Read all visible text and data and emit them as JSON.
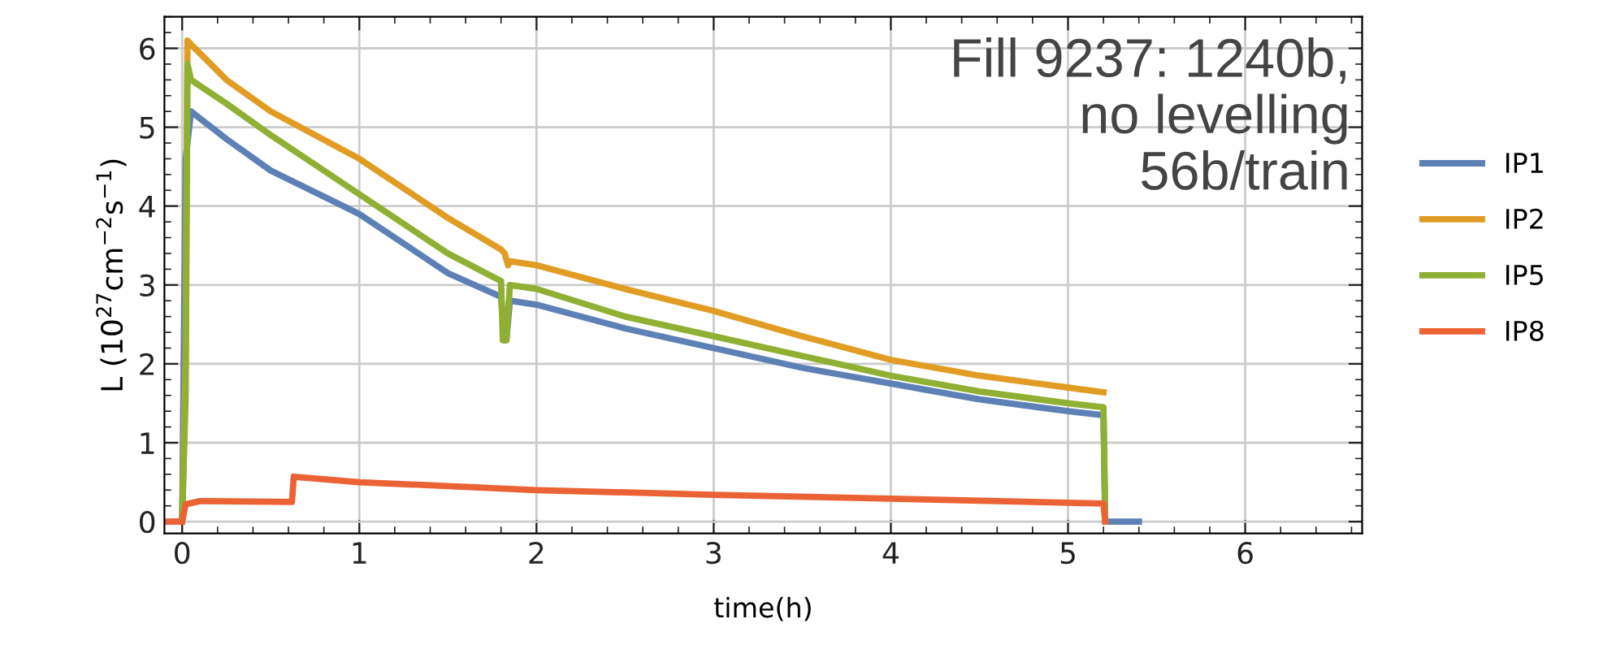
{
  "chart_data": {
    "type": "line",
    "xlabel": "time(h)",
    "ylabel": "L (10$^{27}$cm$^{−2}$s$^{−1}$)",
    "xlim": [
      -0.1,
      6.66
    ],
    "ylim": [
      -0.15,
      6.4
    ],
    "xticks": [
      0,
      1,
      2,
      3,
      4,
      5,
      6
    ],
    "yticks": [
      0,
      1,
      2,
      3,
      4,
      5,
      6
    ],
    "grid": true,
    "legend": "right",
    "marker": "none",
    "line_style": "solid",
    "annotations": [
      "Fill 9237: 1240b,\nno levelling\n56b/train"
    ],
    "series": [
      {
        "name": "IP1",
        "color": "#5e81b5",
        "x": [
          -0.05,
          0.0,
          0.02,
          0.05,
          0.25,
          0.5,
          1.0,
          1.5,
          1.8,
          1.82,
          1.83,
          1.85,
          2.0,
          2.5,
          3.0,
          3.5,
          4.0,
          4.5,
          5.0,
          5.2,
          5.21,
          5.4
        ],
        "values": [
          0.0,
          0.0,
          4.6,
          5.2,
          4.85,
          4.45,
          3.9,
          3.15,
          2.85,
          2.3,
          2.3,
          2.8,
          2.75,
          2.45,
          2.2,
          1.95,
          1.75,
          1.55,
          1.4,
          1.35,
          0.0,
          0.0
        ]
      },
      {
        "name": "IP2",
        "color": "#e19c24",
        "x": [
          0.0,
          0.02,
          0.03,
          0.05,
          0.25,
          0.5,
          1.0,
          1.5,
          1.8,
          1.82,
          1.84,
          1.85,
          2.0,
          2.5,
          3.0,
          3.5,
          4.0,
          4.5,
          5.0,
          5.2
        ],
        "values": [
          0.0,
          2.1,
          6.1,
          6.05,
          5.6,
          5.2,
          4.6,
          3.85,
          3.45,
          3.4,
          3.25,
          3.3,
          3.25,
          2.95,
          2.67,
          2.35,
          2.05,
          1.85,
          1.7,
          1.64
        ]
      },
      {
        "name": "IP5",
        "color": "#8fb032",
        "x": [
          0.0,
          0.02,
          0.03,
          0.05,
          0.25,
          0.5,
          1.0,
          1.5,
          1.8,
          1.81,
          1.83,
          1.85,
          2.0,
          2.5,
          3.0,
          3.5,
          4.0,
          4.5,
          5.0,
          5.2,
          5.21
        ],
        "values": [
          0.0,
          1.6,
          5.8,
          5.6,
          5.3,
          4.9,
          4.15,
          3.4,
          3.05,
          2.3,
          2.3,
          3.0,
          2.95,
          2.6,
          2.35,
          2.1,
          1.85,
          1.65,
          1.5,
          1.45,
          0.0
        ]
      },
      {
        "name": "IP8",
        "color": "#eb6235",
        "x": [
          -0.1,
          0.0,
          0.02,
          0.1,
          0.62,
          0.63,
          1.0,
          2.0,
          3.0,
          4.0,
          5.2,
          5.21
        ],
        "values": [
          0.0,
          0.0,
          0.22,
          0.26,
          0.25,
          0.57,
          0.5,
          0.4,
          0.34,
          0.29,
          0.23,
          0.0
        ]
      }
    ]
  }
}
